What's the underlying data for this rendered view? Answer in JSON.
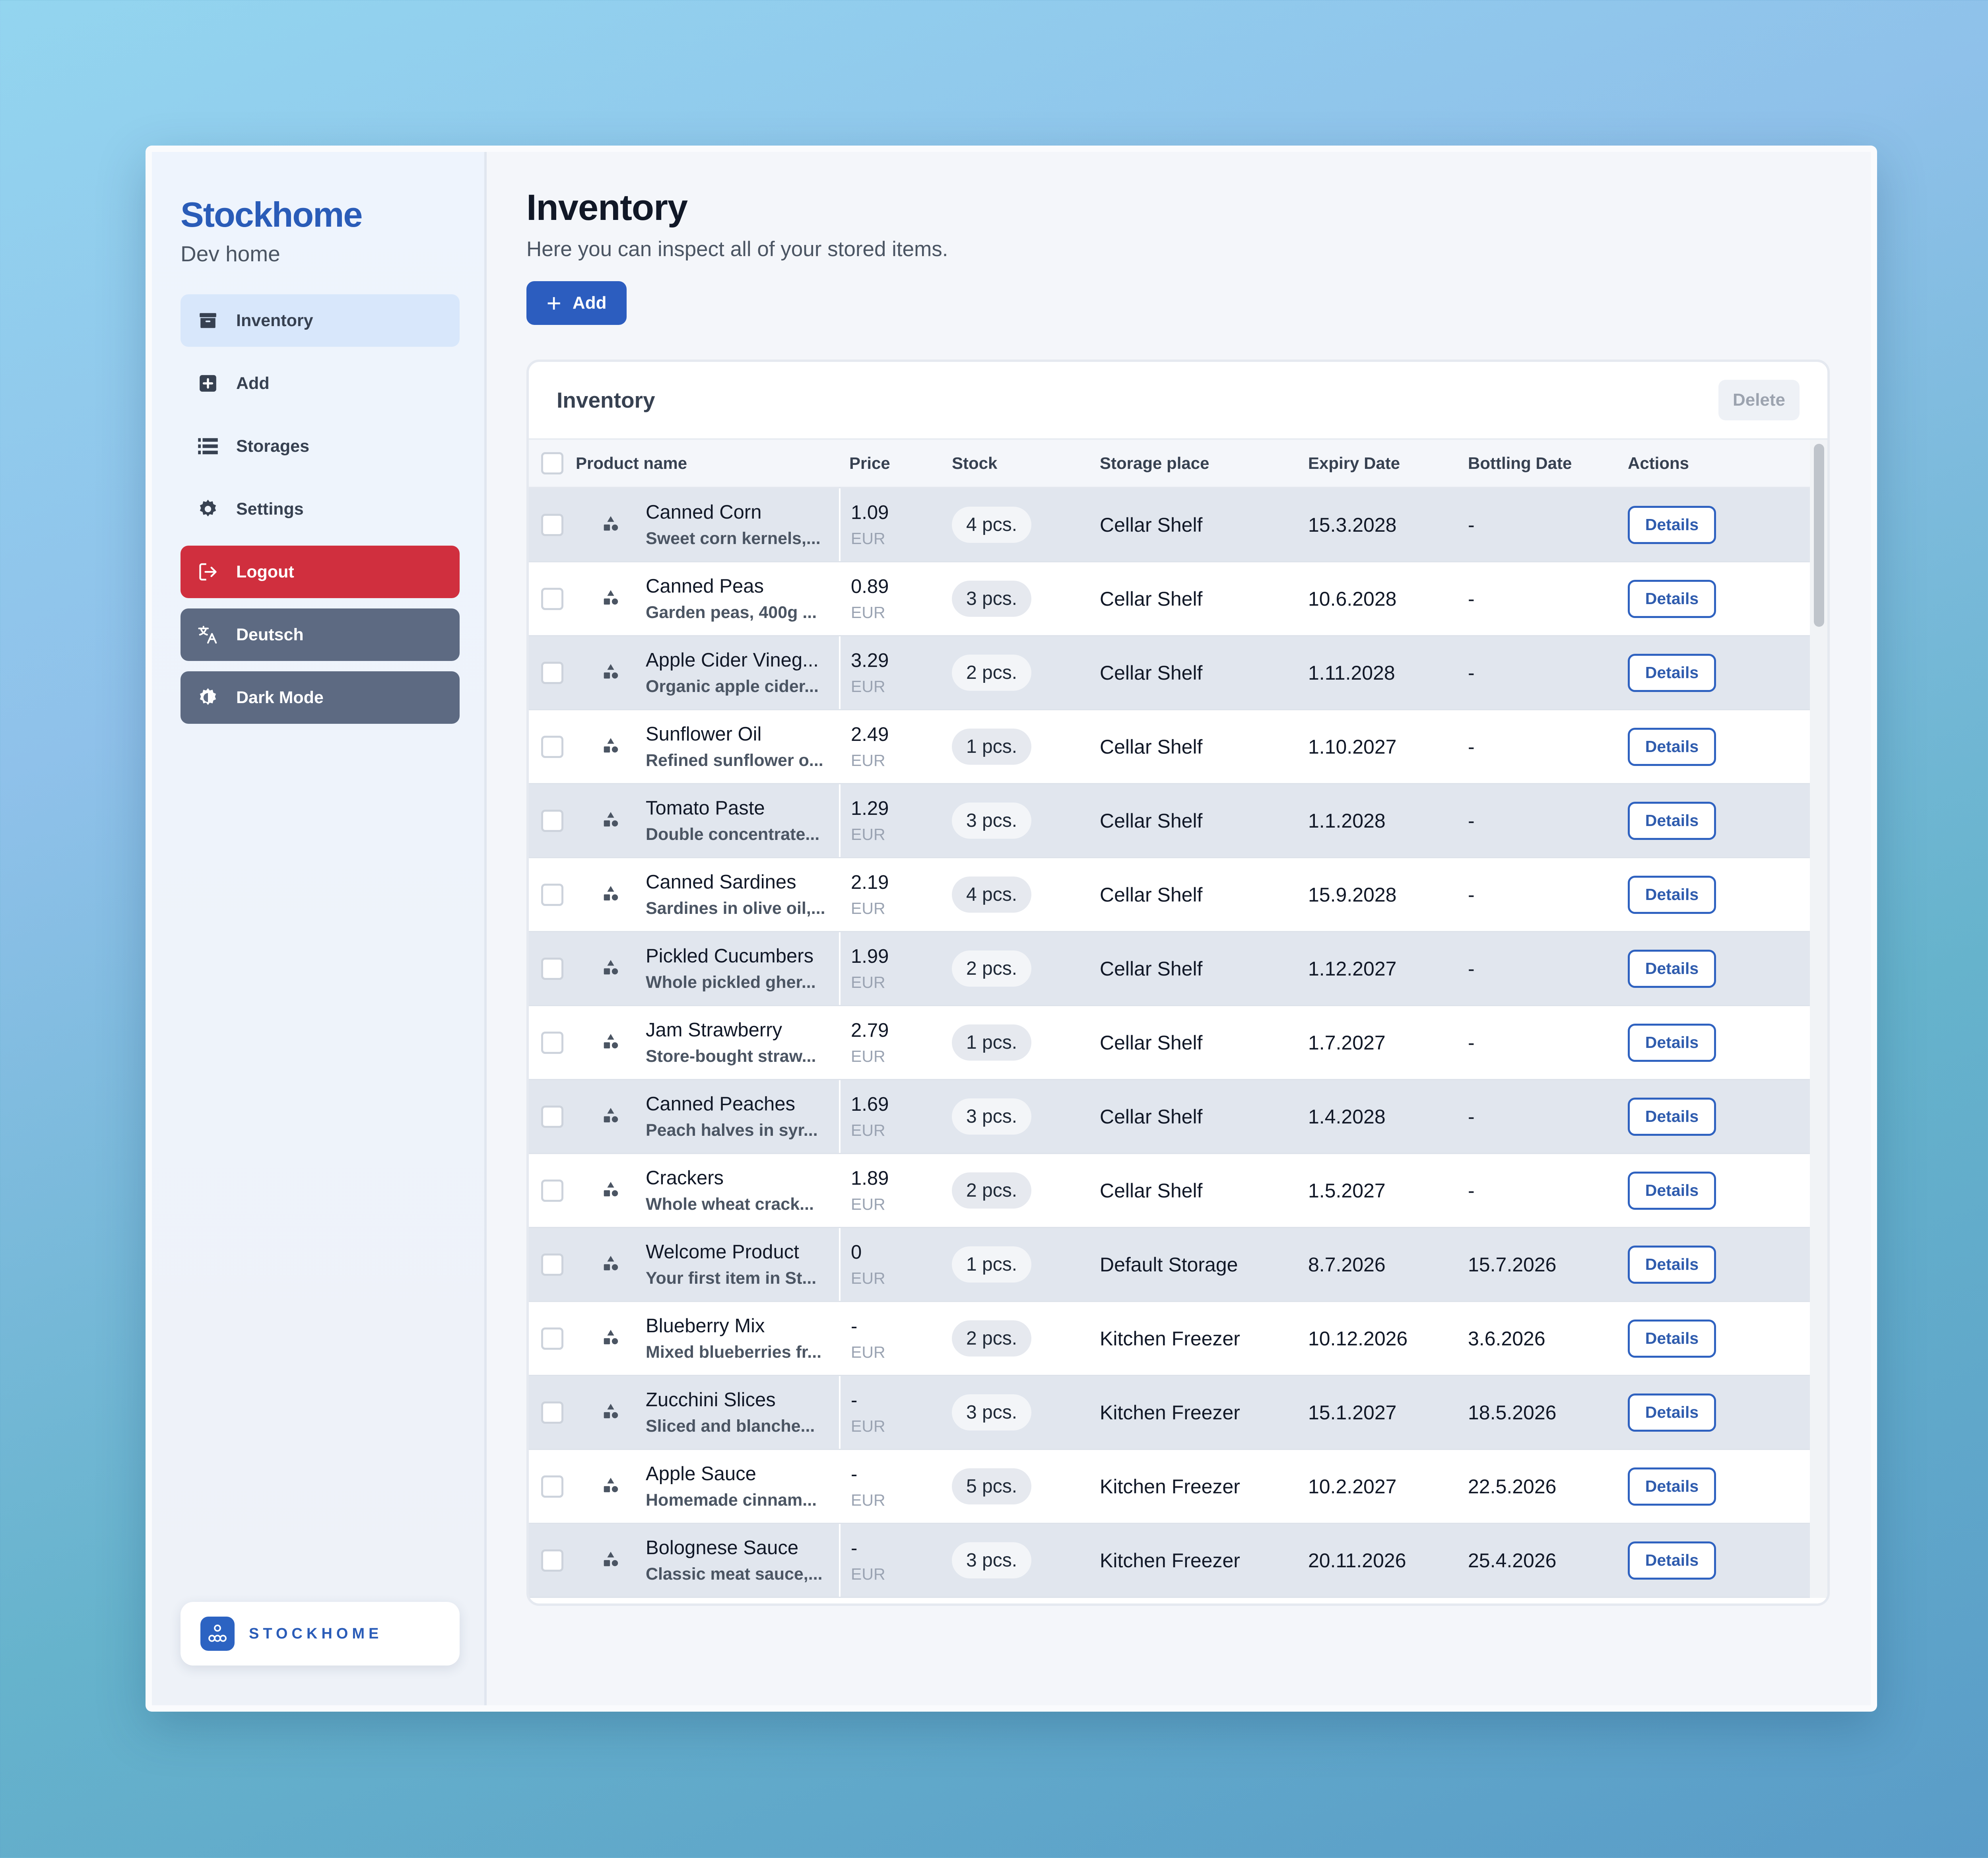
{
  "app": {
    "brand": "Stockhome",
    "home_name": "Dev home",
    "logo_text": "STOCKHOME"
  },
  "sidebar": {
    "items": [
      {
        "label": "Inventory",
        "icon": "archive-icon",
        "active": true
      },
      {
        "label": "Add",
        "icon": "plus-square-icon"
      },
      {
        "label": "Storages",
        "icon": "list-icon"
      },
      {
        "label": "Settings",
        "icon": "gear-icon"
      },
      {
        "label": "Logout",
        "icon": "logout-icon",
        "color": "#d02f3e"
      },
      {
        "label": "Deutsch",
        "icon": "translate-icon",
        "color": "#5d6a82"
      },
      {
        "label": "Dark Mode",
        "icon": "contrast-icon",
        "color": "#5d6a82"
      }
    ]
  },
  "main": {
    "title": "Inventory",
    "subtitle": "Here you can inspect all of your stored items.",
    "add_label": "Add"
  },
  "card": {
    "title": "Inventory",
    "delete_label": "Delete"
  },
  "table": {
    "columns": [
      "Product name",
      "Price",
      "Stock",
      "Storage place",
      "Expiry Date",
      "Bottling Date",
      "Actions"
    ],
    "action_label": "Details",
    "currency": "EUR",
    "rows": [
      {
        "name": "Canned Corn",
        "desc": "Sweet corn kernels,...",
        "price": "1.09",
        "stock": "4 pcs.",
        "storage": "Cellar Shelf",
        "expiry": "15.3.2028",
        "bottling": "-"
      },
      {
        "name": "Canned Peas",
        "desc": "Garden peas, 400g ...",
        "price": "0.89",
        "stock": "3 pcs.",
        "storage": "Cellar Shelf",
        "expiry": "10.6.2028",
        "bottling": "-"
      },
      {
        "name": "Apple Cider Vineg...",
        "desc": "Organic apple cider...",
        "price": "3.29",
        "stock": "2 pcs.",
        "storage": "Cellar Shelf",
        "expiry": "1.11.2028",
        "bottling": "-"
      },
      {
        "name": "Sunflower Oil",
        "desc": "Refined sunflower o...",
        "price": "2.49",
        "stock": "1 pcs.",
        "storage": "Cellar Shelf",
        "expiry": "1.10.2027",
        "bottling": "-"
      },
      {
        "name": "Tomato Paste",
        "desc": "Double concentrate...",
        "price": "1.29",
        "stock": "3 pcs.",
        "storage": "Cellar Shelf",
        "expiry": "1.1.2028",
        "bottling": "-"
      },
      {
        "name": "Canned Sardines",
        "desc": "Sardines in olive oil,...",
        "price": "2.19",
        "stock": "4 pcs.",
        "storage": "Cellar Shelf",
        "expiry": "15.9.2028",
        "bottling": "-"
      },
      {
        "name": "Pickled Cucumbers",
        "desc": "Whole pickled gher...",
        "price": "1.99",
        "stock": "2 pcs.",
        "storage": "Cellar Shelf",
        "expiry": "1.12.2027",
        "bottling": "-"
      },
      {
        "name": "Jam Strawberry",
        "desc": "Store-bought straw...",
        "price": "2.79",
        "stock": "1 pcs.",
        "storage": "Cellar Shelf",
        "expiry": "1.7.2027",
        "bottling": "-"
      },
      {
        "name": "Canned Peaches",
        "desc": "Peach halves in syr...",
        "price": "1.69",
        "stock": "3 pcs.",
        "storage": "Cellar Shelf",
        "expiry": "1.4.2028",
        "bottling": "-"
      },
      {
        "name": "Crackers",
        "desc": "Whole wheat crack...",
        "price": "1.89",
        "stock": "2 pcs.",
        "storage": "Cellar Shelf",
        "expiry": "1.5.2027",
        "bottling": "-"
      },
      {
        "name": "Welcome Product",
        "desc": "Your first item in St...",
        "price": "0",
        "stock": "1 pcs.",
        "storage": "Default Storage",
        "expiry": "8.7.2026",
        "bottling": "15.7.2026"
      },
      {
        "name": "Blueberry Mix",
        "desc": "Mixed blueberries fr...",
        "price": "-",
        "stock": "2 pcs.",
        "storage": "Kitchen Freezer",
        "expiry": "10.12.2026",
        "bottling": "3.6.2026"
      },
      {
        "name": "Zucchini Slices",
        "desc": "Sliced and blanche...",
        "price": "-",
        "stock": "3 pcs.",
        "storage": "Kitchen Freezer",
        "expiry": "15.1.2027",
        "bottling": "18.5.2026"
      },
      {
        "name": "Apple Sauce",
        "desc": "Homemade cinnam...",
        "price": "-",
        "stock": "5 pcs.",
        "storage": "Kitchen Freezer",
        "expiry": "10.2.2027",
        "bottling": "22.5.2026"
      },
      {
        "name": "Bolognese Sauce",
        "desc": "Classic meat sauce,...",
        "price": "-",
        "stock": "3 pcs.",
        "storage": "Kitchen Freezer",
        "expiry": "20.11.2026",
        "bottling": "25.4.2026"
      }
    ]
  },
  "colors": {
    "accent": "#2c5dbf",
    "danger": "#d02f3e",
    "slate": "#5d6a82",
    "active_bg": "#d8e7fb"
  }
}
